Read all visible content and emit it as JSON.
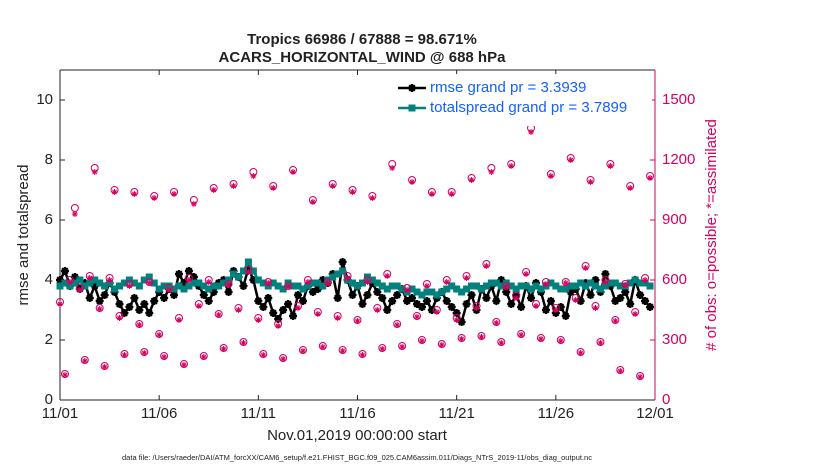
{
  "chart_data": {
    "type": "line",
    "title": "Tropics 66986 / 67888 = 98.671%",
    "subtitle": "ACARS_HORIZONTAL_WIND @ 688 hPa",
    "xlabel": "Nov.01,2019 00:00:00 start",
    "ylabel": "rmse and totalspread",
    "y2label": "# of obs: o=possible; *=assimilated",
    "footnote": "data file: /Users/raeder/DAI/ATM_forcXX/CAM6_setup/f.e21.FHIST_BGC.f09_025.CAM6assim.011/Diags_NTrS_2019-11/obs_diag_output.nc",
    "xlim": [
      0,
      30
    ],
    "xticks": [
      {
        "value": 0,
        "label": "11/01"
      },
      {
        "value": 5,
        "label": "11/06"
      },
      {
        "value": 10,
        "label": "11/11"
      },
      {
        "value": 15,
        "label": "11/16"
      },
      {
        "value": 20,
        "label": "11/21"
      },
      {
        "value": 25,
        "label": "11/26"
      },
      {
        "value": 30,
        "label": "12/01"
      }
    ],
    "ylim": [
      0,
      11
    ],
    "yticks": [
      0,
      2,
      4,
      6,
      8,
      10
    ],
    "y2lim": [
      0,
      1650
    ],
    "y2ticks": [
      0,
      300,
      600,
      900,
      1200,
      1500
    ],
    "y2color": "#d6005f",
    "legend": "upper right",
    "x": [
      0,
      0.25,
      0.5,
      0.75,
      1,
      1.25,
      1.5,
      1.75,
      2,
      2.25,
      2.5,
      2.75,
      3,
      3.25,
      3.5,
      3.75,
      4,
      4.25,
      4.5,
      4.75,
      5,
      5.25,
      5.5,
      5.75,
      6,
      6.25,
      6.5,
      6.75,
      7,
      7.25,
      7.5,
      7.75,
      8,
      8.25,
      8.5,
      8.75,
      9,
      9.25,
      9.5,
      9.75,
      10,
      10.25,
      10.5,
      10.75,
      11,
      11.25,
      11.5,
      11.75,
      12,
      12.25,
      12.5,
      12.75,
      13,
      13.25,
      13.5,
      13.75,
      14,
      14.25,
      14.5,
      14.75,
      15,
      15.25,
      15.5,
      15.75,
      16,
      16.25,
      16.5,
      16.75,
      17,
      17.25,
      17.5,
      17.75,
      18,
      18.25,
      18.5,
      18.75,
      19,
      19.25,
      19.5,
      19.75,
      20,
      20.25,
      20.5,
      20.75,
      21,
      21.25,
      21.5,
      21.75,
      22,
      22.25,
      22.5,
      22.75,
      23,
      23.25,
      23.5,
      23.75,
      24,
      24.25,
      24.5,
      24.75,
      25,
      25.25,
      25.5,
      25.75,
      26,
      26.25,
      26.5,
      26.75,
      27,
      27.25,
      27.5,
      27.75,
      28,
      28.25,
      28.5,
      28.75,
      29,
      29.25,
      29.5,
      29.75
    ],
    "series": [
      {
        "name": "rmse grand pr = 3.3939",
        "color": "#000000",
        "marker": "*",
        "line": true,
        "values": [
          4.0,
          4.3,
          3.8,
          4.1,
          3.7,
          3.9,
          3.4,
          3.8,
          3.3,
          3.5,
          3.9,
          3.6,
          3.2,
          2.9,
          3.1,
          3.4,
          3.0,
          3.2,
          2.9,
          3.3,
          3.6,
          3.4,
          3.7,
          3.5,
          4.2,
          3.9,
          4.3,
          4.1,
          3.8,
          3.5,
          3.3,
          3.6,
          3.9,
          4.0,
          3.6,
          4.3,
          4.1,
          3.8,
          4.4,
          4.0,
          3.3,
          3.1,
          3.4,
          2.9,
          2.7,
          3.0,
          3.2,
          2.8,
          3.5,
          3.3,
          3.8,
          3.6,
          3.7,
          4.0,
          3.9,
          4.2,
          3.4,
          4.6,
          4.0,
          3.5,
          3.8,
          3.2,
          3.5,
          3.9,
          3.6,
          3.4,
          3.0,
          3.3,
          3.5,
          3.7,
          3.3,
          3.4,
          3.2,
          3.1,
          3.3,
          3.0,
          3.4,
          3.6,
          3.3,
          3.1,
          2.9,
          2.6,
          3.2,
          3.5,
          3.0,
          3.7,
          3.4,
          3.8,
          3.3,
          4.0,
          3.6,
          3.2,
          3.5,
          3.1,
          3.8,
          3.4,
          3.9,
          3.6,
          3.0,
          3.3,
          2.9,
          3.1,
          2.8,
          3.6,
          3.7,
          3.3,
          3.9,
          3.5,
          4.0,
          3.6,
          4.2,
          3.8,
          3.3,
          3.4,
          3.6,
          3.2,
          4.0,
          3.5,
          3.3,
          3.1
        ]
      },
      {
        "name": "totalspread grand pr = 3.7899",
        "color": "#00817d",
        "marker": "s",
        "line": true,
        "values": [
          3.8,
          3.9,
          3.8,
          3.9,
          4.0,
          3.8,
          3.9,
          4.0,
          3.9,
          3.8,
          3.9,
          3.7,
          3.8,
          3.9,
          4.0,
          3.9,
          3.8,
          4.0,
          4.1,
          3.9,
          3.7,
          3.8,
          3.8,
          3.7,
          3.8,
          3.7,
          3.8,
          3.9,
          3.9,
          3.8,
          3.7,
          3.8,
          3.8,
          3.9,
          4.0,
          4.2,
          4.1,
          4.3,
          4.6,
          4.3,
          4.0,
          3.9,
          3.8,
          3.9,
          3.8,
          3.7,
          3.9,
          3.8,
          3.8,
          3.7,
          3.8,
          3.9,
          3.9,
          3.8,
          4.0,
          4.1,
          4.2,
          4.3,
          4.0,
          3.9,
          3.8,
          3.9,
          4.1,
          4.0,
          3.9,
          3.8,
          3.7,
          3.8,
          3.8,
          3.7,
          3.6,
          3.7,
          3.6,
          3.5,
          3.6,
          3.6,
          3.5,
          3.6,
          3.7,
          3.8,
          3.7,
          3.6,
          3.7,
          3.8,
          3.8,
          3.7,
          3.8,
          3.9,
          3.9,
          3.8,
          3.9,
          3.8,
          3.7,
          3.8,
          3.8,
          3.7,
          3.8,
          3.7,
          3.8,
          3.9,
          3.8,
          3.7,
          3.7,
          3.8,
          3.8,
          3.9,
          3.8,
          3.9,
          3.8,
          3.7,
          3.8,
          3.9,
          3.9,
          3.8,
          3.8,
          3.9,
          4.0,
          3.9,
          3.9,
          3.8
        ]
      },
      {
        "axis": "y2",
        "color": "#d6005f",
        "marker": "o",
        "line": false,
        "values": [
          490,
          130,
          600,
          960,
          560,
          200,
          620,
          1160,
          460,
          170,
          610,
          1050,
          420,
          230,
          580,
          1040,
          380,
          240,
          590,
          1020,
          330,
          220,
          560,
          1040,
          410,
          180,
          610,
          1000,
          480,
          220,
          600,
          1060,
          430,
          260,
          580,
          1080,
          460,
          290,
          650,
          1140,
          410,
          230,
          590,
          1070,
          380,
          210,
          570,
          1150,
          470,
          250,
          600,
          1000,
          440,
          270,
          590,
          1080,
          420,
          250,
          620,
          1050,
          400,
          230,
          600,
          1020,
          460,
          260,
          630,
          1180,
          380,
          270,
          560,
          1100,
          420,
          300,
          580,
          1040,
          450,
          280,
          600,
          1040,
          410,
          310,
          620,
          1110,
          470,
          320,
          680,
          1160,
          390,
          290,
          570,
          1180,
          520,
          330,
          640,
          1360,
          480,
          310,
          590,
          1130,
          460,
          300,
          590,
          1210,
          510,
          240,
          670,
          1100,
          470,
          290,
          600,
          1180,
          400,
          150,
          580,
          1070,
          440,
          120,
          610,
          1120
        ]
      },
      {
        "axis": "y2",
        "color": "#d6005f",
        "marker": "*",
        "line": false,
        "values": [
          480,
          125,
          590,
          930,
          550,
          195,
          610,
          1140,
          455,
          165,
          600,
          1040,
          410,
          225,
          570,
          1030,
          375,
          235,
          585,
          1010,
          325,
          215,
          550,
          1030,
          400,
          175,
          600,
          980,
          470,
          215,
          590,
          1050,
          425,
          255,
          575,
          1070,
          450,
          285,
          640,
          1120,
          400,
          225,
          585,
          1060,
          370,
          205,
          565,
          1140,
          460,
          245,
          590,
          990,
          430,
          265,
          585,
          1070,
          410,
          245,
          610,
          1040,
          395,
          225,
          590,
          1010,
          450,
          255,
          620,
          1160,
          375,
          265,
          550,
          1090,
          415,
          295,
          570,
          1030,
          440,
          275,
          590,
          1030,
          400,
          305,
          610,
          1100,
          460,
          315,
          670,
          1140,
          385,
          285,
          565,
          1170,
          510,
          325,
          630,
          1340,
          470,
          305,
          580,
          1120,
          450,
          295,
          585,
          1200,
          500,
          235,
          660,
          1090,
          460,
          285,
          590,
          1170,
          395,
          145,
          575,
          1060,
          430,
          115,
          600,
          1110
        ]
      }
    ]
  }
}
